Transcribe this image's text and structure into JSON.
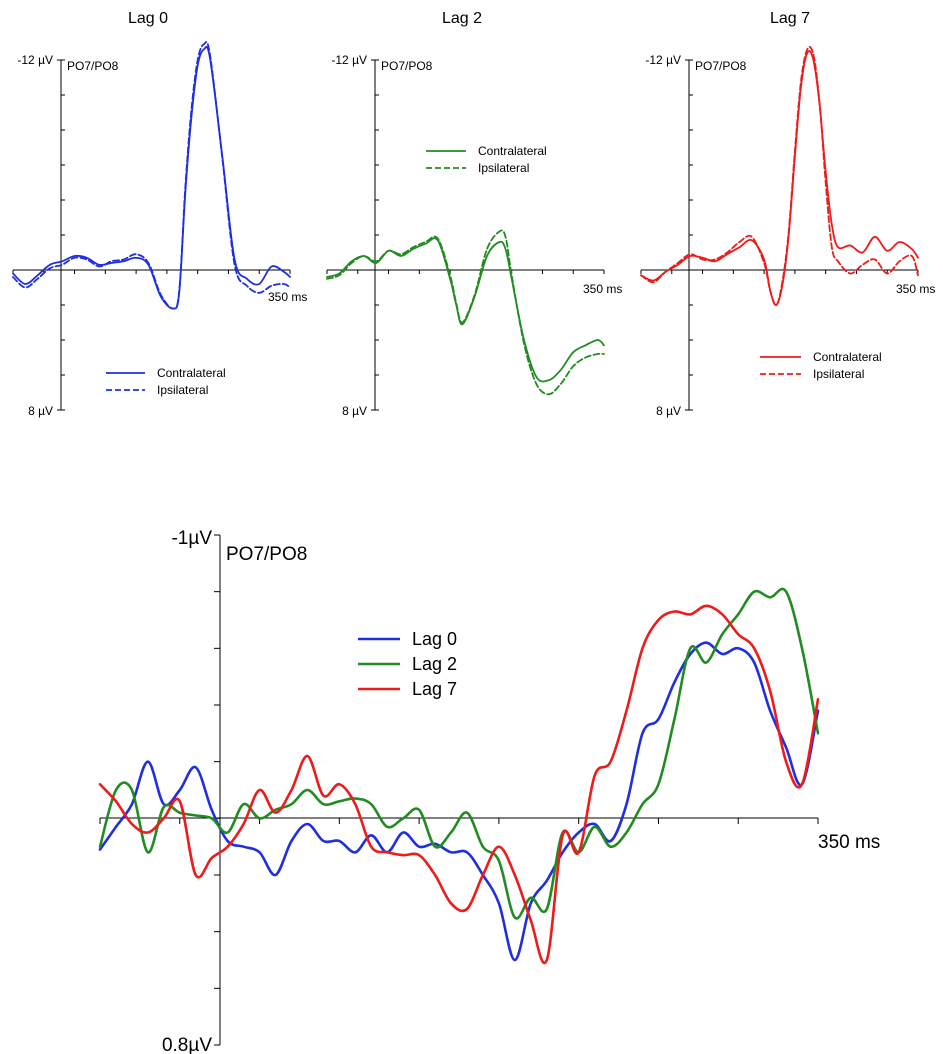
{
  "chart_data": [
    {
      "type": "line",
      "title": "Lag 0",
      "panel_label": "PO7/PO8",
      "y_top_label": "-12 µV",
      "y_bottom_label": "8 µV",
      "x_end_label": "350 ms",
      "ylim": [
        -12,
        8
      ],
      "y_inverted": true,
      "xlim": [
        -100,
        350
      ],
      "legend": "bottom-center",
      "colors": {
        "main": "#1f2fe0"
      },
      "series": [
        {
          "name": "Contralateral",
          "style": "solid",
          "x": [
            -100,
            -80,
            -60,
            -40,
            -20,
            0,
            20,
            40,
            60,
            80,
            100,
            120,
            140,
            160,
            170,
            180,
            190,
            200,
            210,
            220,
            240,
            260,
            280,
            300,
            320,
            340,
            350
          ],
          "y": [
            0.2,
            0.8,
            0.3,
            -0.3,
            -0.5,
            -0.8,
            -0.7,
            -0.3,
            -0.4,
            -0.5,
            -0.7,
            -0.3,
            1.5,
            2.2,
            1.3,
            -4.5,
            -8.8,
            -11.7,
            -12.6,
            -12.1,
            -6.5,
            -0.6,
            0.5,
            0.8,
            -0.2,
            0.1,
            0.4
          ]
        },
        {
          "name": "Ipsilateral",
          "style": "dashed",
          "x": [
            -100,
            -80,
            -60,
            -40,
            -20,
            0,
            20,
            40,
            60,
            80,
            100,
            120,
            140,
            160,
            170,
            180,
            190,
            200,
            210,
            220,
            240,
            260,
            280,
            300,
            320,
            340,
            350
          ],
          "y": [
            0.4,
            1.0,
            0.5,
            -0.1,
            -0.3,
            -0.7,
            -0.6,
            -0.2,
            -0.5,
            -0.6,
            -0.9,
            -0.4,
            1.4,
            2.2,
            1.2,
            -4.8,
            -9.2,
            -12.0,
            -12.9,
            -12.3,
            -6.4,
            -0.3,
            0.9,
            1.3,
            0.9,
            0.8,
            1.0
          ]
        }
      ]
    },
    {
      "type": "line",
      "title": "Lag 2",
      "panel_label": "PO7/PO8",
      "y_top_label": "-12 µV",
      "y_bottom_label": "8 µV",
      "x_end_label": "350 ms",
      "ylim": [
        -12,
        8
      ],
      "y_inverted": true,
      "xlim": [
        -100,
        350
      ],
      "legend": "top-right",
      "colors": {
        "main": "#228b22"
      },
      "series": [
        {
          "name": "Contralateral",
          "style": "solid",
          "x": [
            -100,
            -80,
            -60,
            -40,
            -20,
            0,
            20,
            40,
            60,
            80,
            100,
            110,
            120,
            140,
            160,
            180,
            190,
            200,
            220,
            240,
            260,
            280,
            300,
            320,
            340,
            350
          ],
          "y": [
            0.4,
            0.2,
            -0.5,
            -0.8,
            -0.4,
            -1.1,
            -0.8,
            -1.2,
            -1.5,
            -1.7,
            0.5,
            2.0,
            3.1,
            1.5,
            -0.8,
            -1.6,
            -1.2,
            0.5,
            4.0,
            6.1,
            6.3,
            5.7,
            4.7,
            4.3,
            4.0,
            4.3
          ]
        },
        {
          "name": "Ipsilateral",
          "style": "dashed",
          "x": [
            -100,
            -80,
            -60,
            -40,
            -20,
            0,
            20,
            40,
            60,
            80,
            100,
            110,
            120,
            140,
            160,
            180,
            190,
            200,
            220,
            240,
            260,
            280,
            300,
            320,
            340,
            350
          ],
          "y": [
            0.5,
            0.3,
            -0.4,
            -0.8,
            -0.5,
            -1.1,
            -0.9,
            -1.3,
            -1.6,
            -1.8,
            0.3,
            1.9,
            3.0,
            1.4,
            -1.2,
            -2.2,
            -1.9,
            0.3,
            4.2,
            6.5,
            7.1,
            6.5,
            5.5,
            5.0,
            4.8,
            4.8
          ]
        }
      ]
    },
    {
      "type": "line",
      "title": "Lag 7",
      "panel_label": "PO7/PO8",
      "y_top_label": "-12 µV",
      "y_bottom_label": "8 µV",
      "x_end_label": "350 ms",
      "ylim": [
        -12,
        8
      ],
      "y_inverted": true,
      "xlim": [
        -100,
        350
      ],
      "legend": "bottom-right",
      "colors": {
        "main": "#ee1b1b"
      },
      "series": [
        {
          "name": "Contralateral",
          "style": "solid",
          "x": [
            -100,
            -80,
            -60,
            -40,
            -20,
            0,
            20,
            40,
            60,
            80,
            100,
            110,
            120,
            130,
            140,
            150,
            160,
            170,
            180,
            190,
            200,
            210,
            220,
            240,
            260,
            280,
            300,
            320,
            340,
            350
          ],
          "y": [
            0.3,
            0.6,
            0.1,
            -0.3,
            -0.8,
            -0.7,
            -0.5,
            -0.9,
            -1.3,
            -1.7,
            -0.6,
            1.2,
            2.0,
            0.8,
            -2.0,
            -6.5,
            -10.5,
            -12.4,
            -12.0,
            -9.5,
            -5.6,
            -2.6,
            -1.3,
            -1.4,
            -1.0,
            -1.9,
            -1.1,
            -1.6,
            -1.2,
            -0.7
          ]
        },
        {
          "name": "Ipsilateral",
          "style": "dashed",
          "x": [
            -100,
            -80,
            -60,
            -40,
            -20,
            0,
            20,
            40,
            60,
            80,
            100,
            110,
            120,
            130,
            140,
            150,
            160,
            170,
            180,
            190,
            200,
            210,
            220,
            240,
            260,
            280,
            300,
            320,
            340,
            350
          ],
          "y": [
            0.3,
            0.7,
            0.1,
            -0.4,
            -0.9,
            -0.6,
            -0.6,
            -1.0,
            -1.6,
            -1.9,
            -0.4,
            1.2,
            2.0,
            0.6,
            -2.2,
            -6.8,
            -10.8,
            -12.6,
            -12.3,
            -9.6,
            -5.0,
            -1.3,
            -0.5,
            0.2,
            -0.3,
            -0.6,
            0.2,
            -0.5,
            -0.8,
            0.3
          ]
        }
      ]
    },
    {
      "type": "line",
      "title": "",
      "panel_label": "PO7/PO8",
      "y_top_label": "-1µV",
      "y_bottom_label": "0.8µV",
      "x_end_label": "350 ms",
      "ylim": [
        -1,
        0.8
      ],
      "y_inverted": true,
      "xlim": [
        -100,
        350
      ],
      "legend": "center",
      "series": [
        {
          "name": "Lag 0",
          "color": "#1f2fe0",
          "x": [
            -100,
            -90,
            -80,
            -70,
            -60,
            -50,
            -40,
            -30,
            -20,
            -10,
            0,
            10,
            20,
            30,
            40,
            50,
            60,
            70,
            80,
            90,
            100,
            110,
            120,
            130,
            140,
            150,
            160,
            170,
            180,
            190,
            200,
            210,
            220,
            230,
            240,
            250,
            260,
            270,
            280,
            290,
            300,
            310,
            320,
            330,
            340,
            350
          ],
          "y": [
            0.11,
            0.03,
            -0.05,
            -0.2,
            -0.05,
            -0.1,
            -0.18,
            -0.03,
            0.08,
            0.1,
            0.12,
            0.2,
            0.08,
            0.02,
            0.08,
            0.08,
            0.12,
            0.06,
            0.12,
            0.05,
            0.1,
            0.09,
            0.12,
            0.12,
            0.2,
            0.3,
            0.5,
            0.3,
            0.22,
            0.12,
            0.05,
            0.02,
            0.08,
            -0.05,
            -0.3,
            -0.35,
            -0.48,
            -0.58,
            -0.62,
            -0.58,
            -0.6,
            -0.55,
            -0.38,
            -0.25,
            -0.12,
            -0.38
          ]
        },
        {
          "name": "Lag 2",
          "color": "#228b22",
          "x": [
            -100,
            -90,
            -80,
            -70,
            -60,
            -50,
            -40,
            -30,
            -20,
            -10,
            0,
            10,
            20,
            30,
            40,
            50,
            60,
            70,
            80,
            90,
            100,
            110,
            120,
            130,
            140,
            150,
            160,
            170,
            180,
            190,
            200,
            210,
            220,
            230,
            240,
            250,
            260,
            270,
            280,
            290,
            300,
            310,
            320,
            330,
            340,
            350
          ],
          "y": [
            0.1,
            -0.1,
            -0.1,
            0.12,
            -0.04,
            -0.02,
            -0.01,
            0.0,
            0.05,
            -0.05,
            0.0,
            -0.03,
            -0.05,
            -0.1,
            -0.05,
            -0.06,
            -0.07,
            -0.05,
            0.03,
            0.0,
            -0.03,
            0.1,
            0.05,
            -0.02,
            0.1,
            0.15,
            0.35,
            0.28,
            0.32,
            0.05,
            0.12,
            0.03,
            0.1,
            0.05,
            -0.05,
            -0.12,
            -0.35,
            -0.6,
            -0.55,
            -0.65,
            -0.72,
            -0.8,
            -0.78,
            -0.8,
            -0.6,
            -0.3
          ]
        },
        {
          "name": "Lag 7",
          "color": "#ee1b1b",
          "x": [
            -100,
            -90,
            -80,
            -70,
            -60,
            -50,
            -40,
            -30,
            -20,
            -10,
            0,
            10,
            20,
            30,
            40,
            50,
            60,
            70,
            80,
            90,
            100,
            110,
            120,
            130,
            140,
            150,
            160,
            170,
            180,
            190,
            200,
            210,
            220,
            230,
            240,
            250,
            260,
            270,
            280,
            290,
            300,
            310,
            320,
            330,
            340,
            350
          ],
          "y": [
            -0.12,
            -0.06,
            0.02,
            0.05,
            0.0,
            -0.06,
            0.2,
            0.14,
            0.1,
            0.02,
            -0.1,
            -0.02,
            -0.1,
            -0.22,
            -0.08,
            -0.12,
            -0.05,
            0.1,
            0.12,
            0.13,
            0.13,
            0.2,
            0.3,
            0.32,
            0.2,
            0.1,
            0.2,
            0.36,
            0.5,
            0.06,
            0.12,
            -0.15,
            -0.2,
            -0.38,
            -0.6,
            -0.7,
            -0.73,
            -0.72,
            -0.75,
            -0.72,
            -0.65,
            -0.6,
            -0.45,
            -0.2,
            -0.12,
            -0.42
          ]
        }
      ]
    }
  ]
}
